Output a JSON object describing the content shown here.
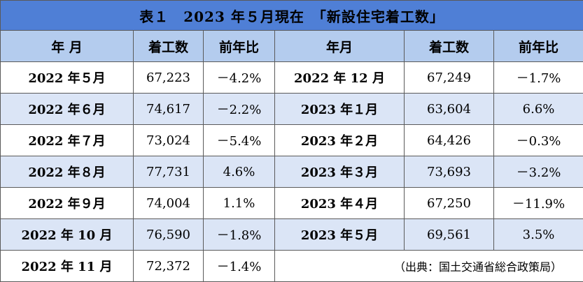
{
  "title": "表１　2023 年５月現在　「新設住宅着工数」",
  "headers": {
    "left": [
      "年 月",
      "着工数",
      "前年比"
    ],
    "right": [
      "年月",
      "着工数",
      "前年比"
    ]
  },
  "rows": [
    {
      "left": [
        "2022 年５月",
        "67,223",
        "－4.2%"
      ],
      "right": [
        "2022 年 12 月",
        "67,249",
        "－1.7%"
      ]
    },
    {
      "left": [
        "2022 年６月",
        "74,617",
        "－2.2%"
      ],
      "right": [
        "2023 年１月",
        "63,604",
        "6.6%"
      ]
    },
    {
      "left": [
        "2022 年７月",
        "73,024",
        "－5.4%"
      ],
      "right": [
        "2023 年２月",
        "64,426",
        "－0.3%"
      ]
    },
    {
      "left": [
        "2022 年８月",
        "77,731",
        "4.6%"
      ],
      "right": [
        "2023 年３月",
        "73,693",
        "－3.2%"
      ]
    },
    {
      "left": [
        "2022 年９月",
        "74,004",
        "1.1%"
      ],
      "right": [
        "2023 年４月",
        "67,250",
        "－11.9%"
      ]
    },
    {
      "left": [
        "2022 年 10 月",
        "76,590",
        "－1.8%"
      ],
      "right": [
        "2023 年５月",
        "69,561",
        "3.5%"
      ]
    },
    {
      "left": [
        "2022 年 11 月",
        "72,372",
        "－1.4%"
      ]
    }
  ],
  "source": "（出典：国土交通省総合政策局）",
  "colors": {
    "title_bg": "#4f7fd6",
    "header_bg": "#b4ccee",
    "alt_row_bg": "#dbe5f6",
    "border": "#5a5a5a"
  }
}
